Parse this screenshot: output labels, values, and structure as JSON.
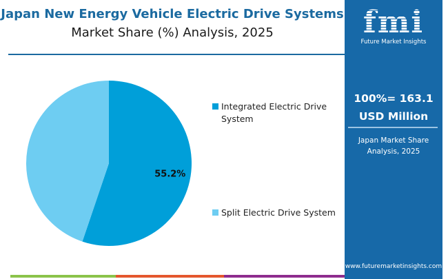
{
  "header": {
    "title": "Japan New Energy Vehicle Electric Drive Systems",
    "subtitle": "Market Share (%) Analysis, 2025"
  },
  "panel": {
    "logo": "fmi",
    "logo_sub": "Future Market Insights",
    "total_line1": "100%= 163.1",
    "total_line2": "USD Million",
    "sub_line1": "Japan Market Share",
    "sub_line2": "Analysis, 2025",
    "url": "www.futuremarketinsights.com"
  },
  "colors": {
    "accent": "#1b6aa0",
    "panel": "#1769a8",
    "bottom_bar": [
      "#8bc34a",
      "#e4572e",
      "#8e2c8e"
    ]
  },
  "chart_data": {
    "type": "pie",
    "title": "Japan New Energy Vehicle Electric Drive Systems Market Share (%) Analysis, 2025",
    "categories": [
      "Integrated Electric Drive System",
      "Split Electric Drive System"
    ],
    "values": [
      55.2,
      44.8
    ],
    "colors": [
      "#009fd9",
      "#6ecdf2"
    ],
    "data_labels": [
      "55.2%",
      ""
    ],
    "legend_position": "right",
    "start": "top, clockwise"
  }
}
